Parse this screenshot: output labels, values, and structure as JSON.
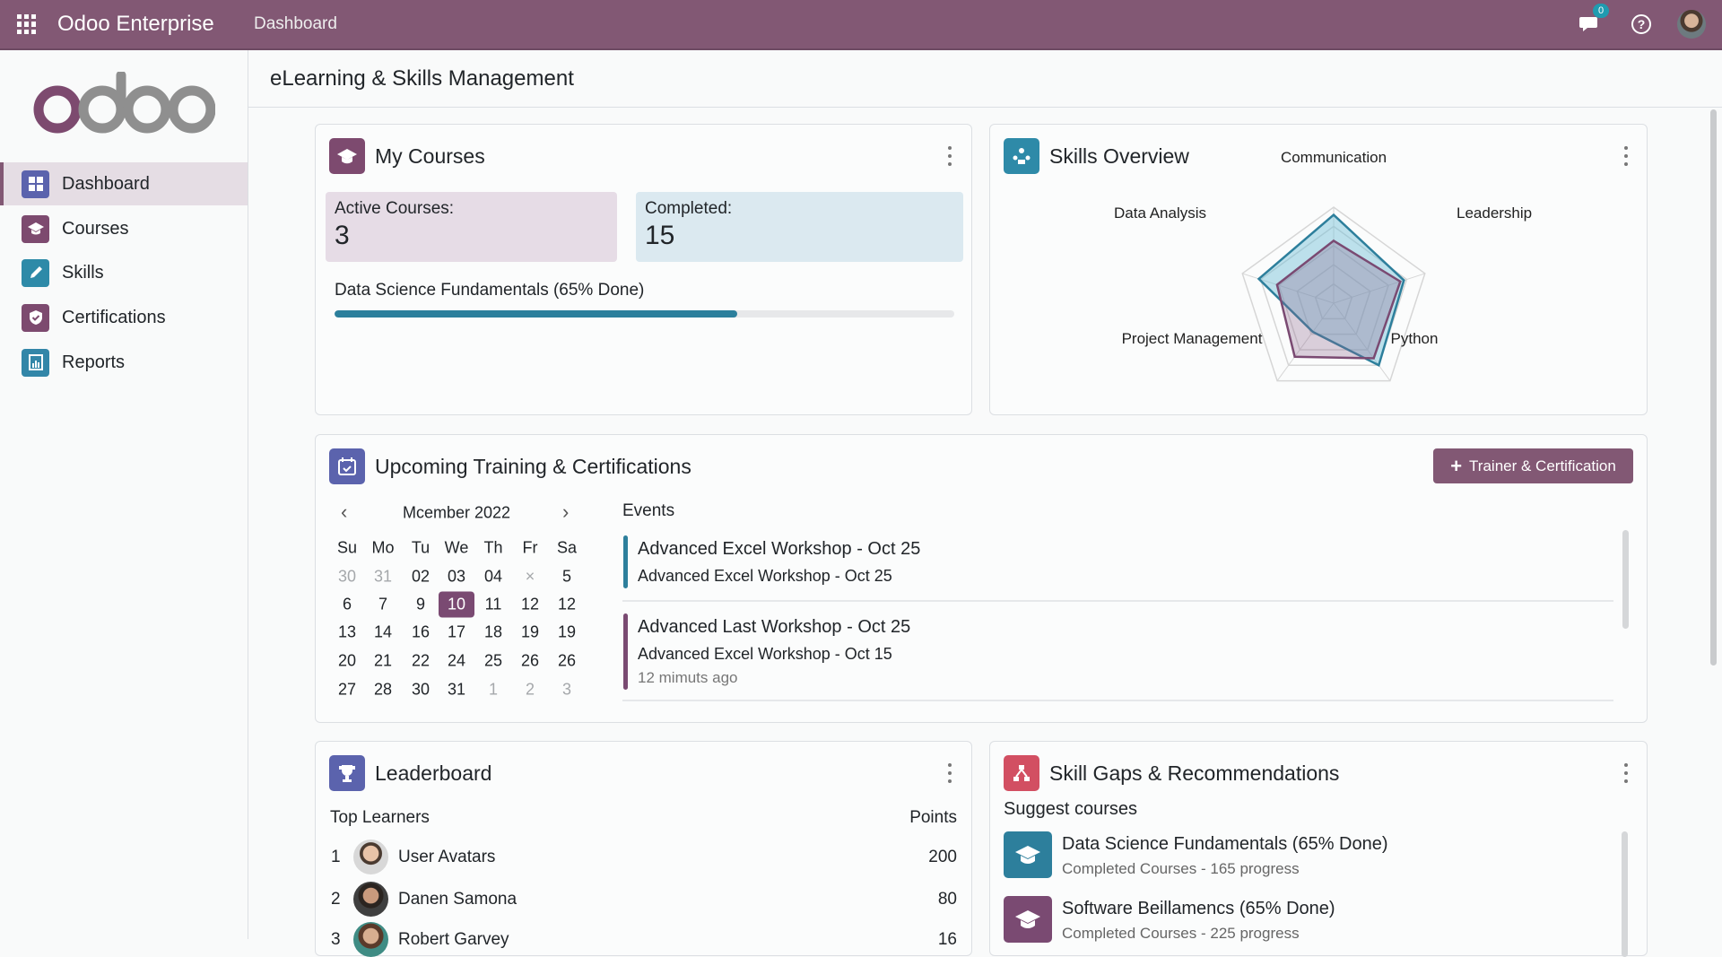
{
  "topbar": {
    "app_name": "Odoo Enterprise",
    "breadcrumb": "Dashboard",
    "chat_badge": "0",
    "icons": [
      "apps-grid-icon",
      "chat-icon",
      "help-icon",
      "user-avatar"
    ]
  },
  "sidebar": {
    "logo": "odoo",
    "items": [
      {
        "label": "Dashboard",
        "icon": "dashboard-icon",
        "color": "#5b63ad",
        "active": true
      },
      {
        "label": "Courses",
        "icon": "graduation-cap-icon",
        "color": "#7d4a6f"
      },
      {
        "label": "Skills",
        "icon": "pencil-icon",
        "color": "#2e8aa8"
      },
      {
        "label": "Certifications",
        "icon": "shield-check-icon",
        "color": "#7d4a6f"
      },
      {
        "label": "Reports",
        "icon": "report-icon",
        "color": "#3286a8"
      }
    ]
  },
  "page": {
    "title": "eLearning & Skills Management"
  },
  "my_courses": {
    "title": "My Courses",
    "active_label": "Active Courses:",
    "active_value": "3",
    "completed_label": "Completed:",
    "completed_value": "15",
    "progress_label": "Data Science Fundamentals (65% Done)",
    "progress_percent": 65
  },
  "skills_overview": {
    "title": "Skills Overview"
  },
  "chart_data": {
    "type": "radar",
    "axes": [
      "Communication",
      "Leadership",
      "Python",
      "Project Management",
      "Data Analysis"
    ],
    "range": [
      0,
      1
    ],
    "grid_rings": 5,
    "series": [
      {
        "color": "#2d7f9c",
        "values": [
          0.92,
          0.77,
          0.8,
          0.37,
          0.82
        ]
      },
      {
        "color": "#7a4a72",
        "values": [
          0.65,
          0.73,
          0.71,
          0.69,
          0.62
        ]
      }
    ]
  },
  "upcoming": {
    "title": "Upcoming Training & Certifications",
    "add_button": "Trainer & Certification",
    "calendar": {
      "month": "Mcember 2022",
      "weekdays": [
        "Su",
        "Mo",
        "Tu",
        "We",
        "Th",
        "Fr",
        "Sa"
      ],
      "weeks": [
        [
          "30",
          "31",
          "02",
          "03",
          "04",
          "×",
          "5"
        ],
        [
          "6",
          "7",
          "9",
          "10",
          "11",
          "12",
          "12"
        ],
        [
          "13",
          "14",
          "16",
          "17",
          "18",
          "19",
          "19"
        ],
        [
          "20",
          "21",
          "22",
          "24",
          "25",
          "26",
          "26"
        ],
        [
          "27",
          "28",
          "30",
          "31",
          "1",
          "2",
          "3"
        ]
      ],
      "selected": "10"
    },
    "events_title": "Events",
    "events": [
      {
        "title": "Advanced Excel Workshop - Oct 25",
        "subtitle": "Advanced Excel Workshop - Oct 25",
        "color": "#2d7f9c"
      },
      {
        "title": "Advanced Last Workshop - Oct 25",
        "subtitle": "Advanced Excel Workshop - Oct 15",
        "time": "12 mimuts ago",
        "color": "#7a4a72"
      }
    ]
  },
  "leaderboard": {
    "title": "Leaderboard",
    "col_learners": "Top Learners",
    "col_points": "Points",
    "rows": [
      {
        "rank": "1",
        "name": "User Avatars",
        "points": "200"
      },
      {
        "rank": "2",
        "name": "Danen Samona",
        "points": "80"
      },
      {
        "rank": "3",
        "name": "Robert Garvey",
        "points": "16"
      }
    ]
  },
  "skill_gaps": {
    "title": "Skill Gaps & Recommendations",
    "subtitle": "Suggest courses",
    "items": [
      {
        "title": "Data Science Fundamentals (65% Done)",
        "meta": "Completed Courses",
        "progress": "165 progress",
        "color": "#2d7f9c"
      },
      {
        "title": "Software Beillamencs (65% Done)",
        "meta": "Completed Courses",
        "progress": "225 progress",
        "color": "#7a4a72"
      }
    ]
  }
}
